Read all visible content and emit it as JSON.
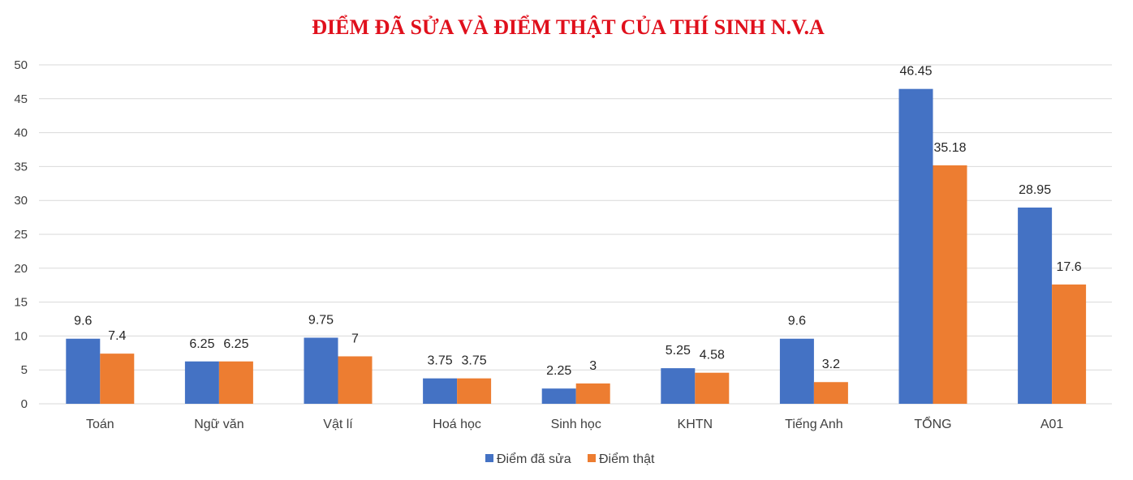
{
  "chart_data": {
    "type": "bar",
    "title": "ĐIỂM ĐÃ SỬA VÀ ĐIỂM THẬT CỦA THÍ SINH N.V.A",
    "categories": [
      "Toán",
      "Ngữ văn",
      "Vật lí",
      "Hoá học",
      "Sinh học",
      "KHTN",
      "Tiếng Anh",
      "TỔNG",
      "A01"
    ],
    "series": [
      {
        "name": "Điểm đã sửa",
        "color": "#4472C4",
        "values": [
          9.6,
          6.25,
          9.75,
          3.75,
          2.25,
          5.25,
          9.6,
          46.45,
          28.95
        ],
        "labels": [
          "9.6",
          "6.25",
          "9.75",
          "3.75",
          "2.25",
          "5.25",
          "9.6",
          "46.45",
          "28.95"
        ]
      },
      {
        "name": "Điểm thật",
        "color": "#ED7D31",
        "values": [
          7.4,
          6.25,
          7,
          3.75,
          3,
          4.58,
          3.2,
          35.18,
          17.6
        ],
        "labels": [
          "7.4",
          "6.25",
          "7",
          "3.75",
          "3",
          "4.58",
          "3.2",
          "35.18",
          "17.6"
        ]
      }
    ],
    "y_ticks": [
      "0",
      "5",
      "10",
      "15",
      "20",
      "25",
      "30",
      "35",
      "40",
      "45",
      "50"
    ],
    "ylim": [
      0,
      50
    ],
    "xlabel": "",
    "ylabel": "",
    "grid": true,
    "legend_position": "bottom",
    "title_color": "#E0101C"
  }
}
